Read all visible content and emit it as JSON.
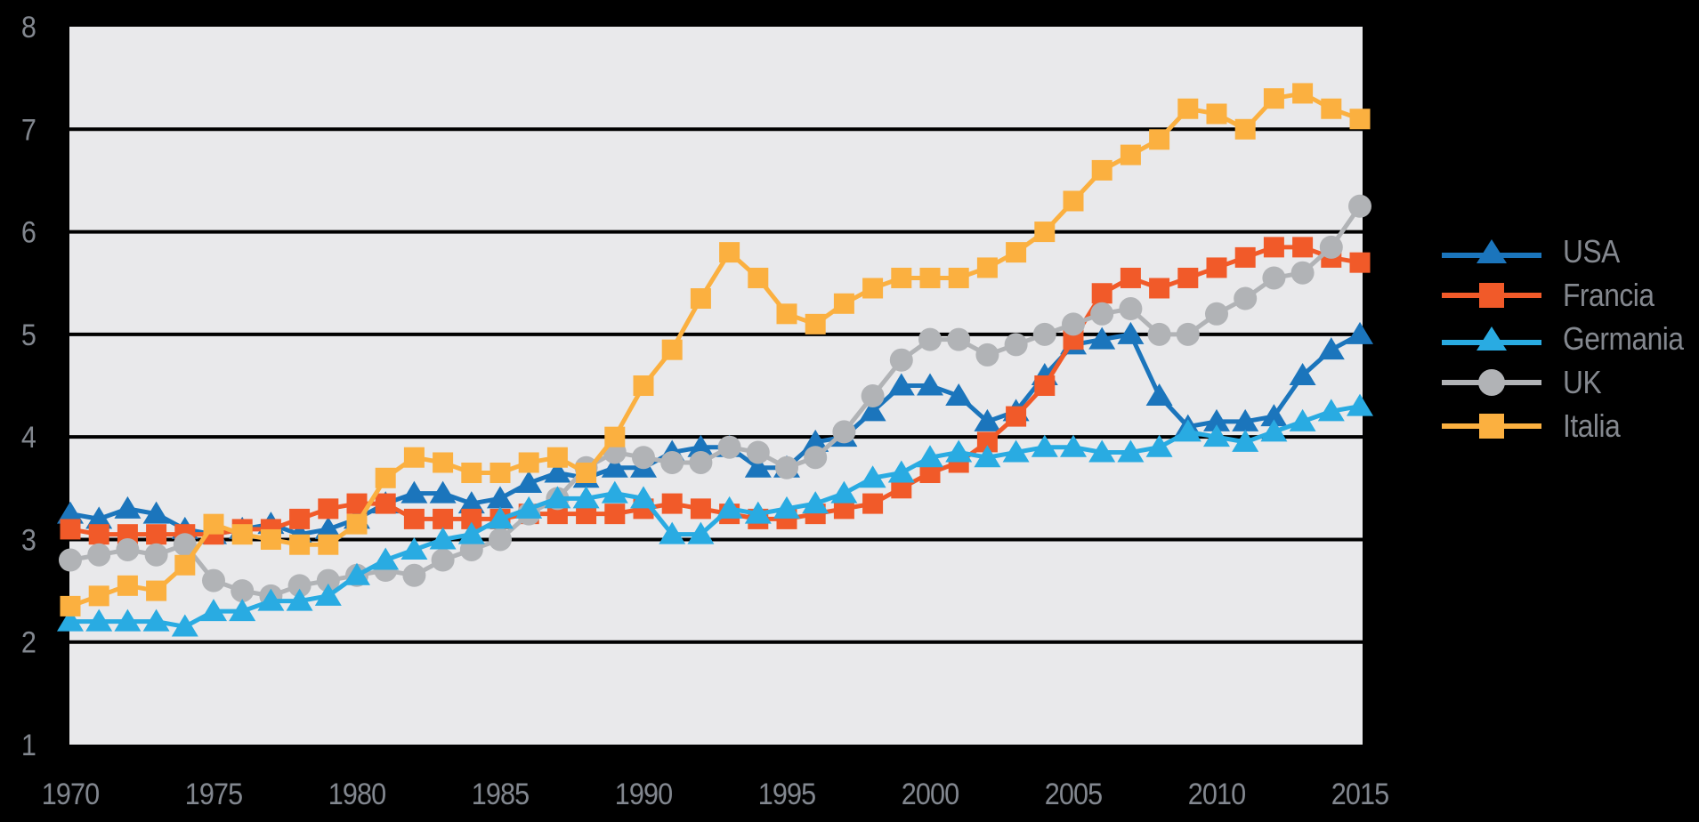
{
  "chart_data": {
    "type": "line",
    "title": "",
    "xlabel": "",
    "ylabel": "",
    "x_range": [
      1970,
      2015
    ],
    "ylim": [
      1,
      8
    ],
    "grid": "horizontal-black-lines",
    "legend_position": "right",
    "plot_background": "#e9e9eb",
    "outer_background": "#000000",
    "gridline_color": "#000000",
    "tick_label_color": "#82878f",
    "xticks": [
      1970,
      1975,
      1980,
      1985,
      1990,
      1995,
      2000,
      2005,
      2010,
      2015
    ],
    "yticks": [
      1,
      2,
      3,
      4,
      5,
      6,
      7,
      8
    ],
    "years": [
      1970,
      1971,
      1972,
      1973,
      1974,
      1975,
      1976,
      1977,
      1978,
      1979,
      1980,
      1981,
      1982,
      1983,
      1984,
      1985,
      1986,
      1987,
      1988,
      1989,
      1990,
      1991,
      1992,
      1993,
      1994,
      1995,
      1996,
      1997,
      1998,
      1999,
      2000,
      2001,
      2002,
      2003,
      2004,
      2005,
      2006,
      2007,
      2008,
      2009,
      2010,
      2011,
      2012,
      2013,
      2014,
      2015
    ],
    "series": [
      {
        "name": "USA",
        "color": "#1b75bc",
        "marker": "triangle",
        "values": [
          3.25,
          3.2,
          3.3,
          3.25,
          3.1,
          3.05,
          3.1,
          3.15,
          3.05,
          3.1,
          3.2,
          3.35,
          3.45,
          3.45,
          3.35,
          3.4,
          3.55,
          3.65,
          3.6,
          3.7,
          3.7,
          3.85,
          3.9,
          3.9,
          3.7,
          3.7,
          3.95,
          4.0,
          4.25,
          4.5,
          4.5,
          4.4,
          4.15,
          4.25,
          4.6,
          4.9,
          4.95,
          5.0,
          4.4,
          4.1,
          4.15,
          4.15,
          4.2,
          4.6,
          4.85,
          5.0
        ]
      },
      {
        "name": "Francia",
        "color": "#f15a29",
        "marker": "square",
        "values": [
          3.1,
          3.05,
          3.05,
          3.05,
          3.05,
          3.05,
          3.1,
          3.1,
          3.2,
          3.3,
          3.35,
          3.35,
          3.2,
          3.2,
          3.2,
          3.2,
          3.25,
          3.25,
          3.25,
          3.25,
          3.3,
          3.35,
          3.3,
          3.25,
          3.2,
          3.2,
          3.25,
          3.3,
          3.35,
          3.5,
          3.65,
          3.75,
          3.95,
          4.2,
          4.5,
          4.95,
          5.4,
          5.55,
          5.45,
          5.55,
          5.65,
          5.75,
          5.85,
          5.85,
          5.75,
          5.7
        ]
      },
      {
        "name": "Germania",
        "color": "#29abe2",
        "marker": "triangle",
        "values": [
          2.2,
          2.2,
          2.2,
          2.2,
          2.15,
          2.3,
          2.3,
          2.4,
          2.4,
          2.45,
          2.65,
          2.8,
          2.9,
          3.0,
          3.05,
          3.2,
          3.3,
          3.4,
          3.4,
          3.45,
          3.4,
          3.05,
          3.05,
          3.3,
          3.25,
          3.3,
          3.35,
          3.45,
          3.6,
          3.65,
          3.8,
          3.85,
          3.8,
          3.85,
          3.9,
          3.9,
          3.85,
          3.85,
          3.9,
          4.05,
          4.0,
          3.95,
          4.05,
          4.15,
          4.25,
          4.3
        ]
      },
      {
        "name": "UK",
        "color": "#b1b3b6",
        "marker": "circle",
        "values": [
          2.8,
          2.85,
          2.9,
          2.85,
          2.95,
          2.6,
          2.5,
          2.45,
          2.55,
          2.6,
          2.65,
          2.7,
          2.65,
          2.8,
          2.9,
          3.0,
          3.25,
          3.4,
          3.7,
          3.85,
          3.8,
          3.75,
          3.75,
          3.9,
          3.85,
          3.7,
          3.8,
          4.05,
          4.4,
          4.75,
          4.95,
          4.95,
          4.8,
          4.9,
          5.0,
          5.1,
          5.2,
          5.25,
          5.0,
          5.0,
          5.2,
          5.35,
          5.55,
          5.6,
          5.85,
          6.25
        ]
      },
      {
        "name": "Italia",
        "color": "#fbb040",
        "marker": "square",
        "values": [
          2.35,
          2.45,
          2.55,
          2.5,
          2.75,
          3.15,
          3.05,
          3.0,
          2.95,
          2.95,
          3.15,
          3.6,
          3.8,
          3.75,
          3.65,
          3.65,
          3.75,
          3.8,
          3.65,
          4.0,
          4.5,
          4.85,
          5.35,
          5.8,
          5.55,
          5.2,
          5.1,
          5.3,
          5.45,
          5.55,
          5.55,
          5.55,
          5.65,
          5.8,
          6.0,
          6.3,
          6.6,
          6.75,
          6.9,
          7.2,
          7.15,
          7.0,
          7.3,
          7.35,
          7.2,
          7.1
        ]
      }
    ]
  },
  "legend": {
    "entries": [
      "USA",
      "Francia",
      "Germania",
      "UK",
      "Italia"
    ]
  }
}
